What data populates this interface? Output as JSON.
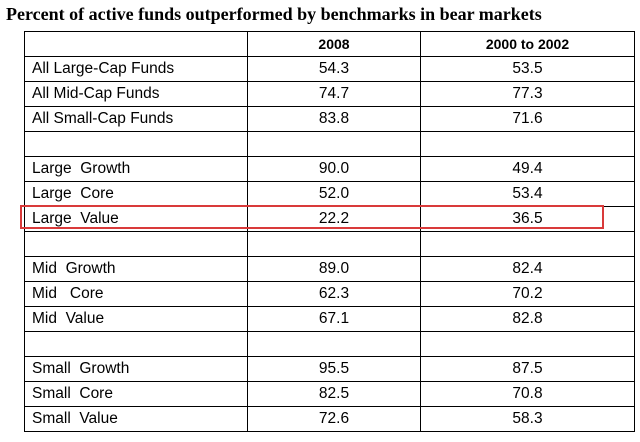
{
  "chart_data": {
    "type": "table",
    "title": "Percent of active funds outperformed by benchmarks in bear markets",
    "columns": [
      "",
      "2008",
      "2000 to 2002"
    ],
    "rows": [
      {
        "label": "All Large-Cap Funds",
        "values": [
          "54.3",
          "53.5"
        ]
      },
      {
        "label": "All Mid-Cap Funds",
        "values": [
          "74.7",
          "77.3"
        ]
      },
      {
        "label": "All Small-Cap Funds",
        "values": [
          "83.8",
          "71.6"
        ]
      },
      {
        "label": "",
        "values": [
          "",
          ""
        ]
      },
      {
        "label": "Large  Growth",
        "values": [
          "90.0",
          "49.4"
        ]
      },
      {
        "label": "Large  Core",
        "values": [
          "52.0",
          "53.4"
        ]
      },
      {
        "label": "Large  Value",
        "values": [
          "22.2",
          "36.5"
        ]
      },
      {
        "label": "",
        "values": [
          "",
          ""
        ]
      },
      {
        "label": "Mid  Growth",
        "values": [
          "89.0",
          "82.4"
        ]
      },
      {
        "label": "Mid   Core",
        "values": [
          "62.3",
          "70.2"
        ]
      },
      {
        "label": "Mid  Value",
        "values": [
          "67.1",
          "82.8"
        ]
      },
      {
        "label": "",
        "values": [
          "",
          ""
        ]
      },
      {
        "label": "Small  Growth",
        "values": [
          "95.5",
          "87.5"
        ]
      },
      {
        "label": "Small  Core",
        "values": [
          "82.5",
          "70.8"
        ]
      },
      {
        "label": "Small  Value",
        "values": [
          "72.6",
          "58.3"
        ]
      }
    ],
    "highlighted_row": "Large  Value",
    "highlight_color": "#d93a3a"
  }
}
